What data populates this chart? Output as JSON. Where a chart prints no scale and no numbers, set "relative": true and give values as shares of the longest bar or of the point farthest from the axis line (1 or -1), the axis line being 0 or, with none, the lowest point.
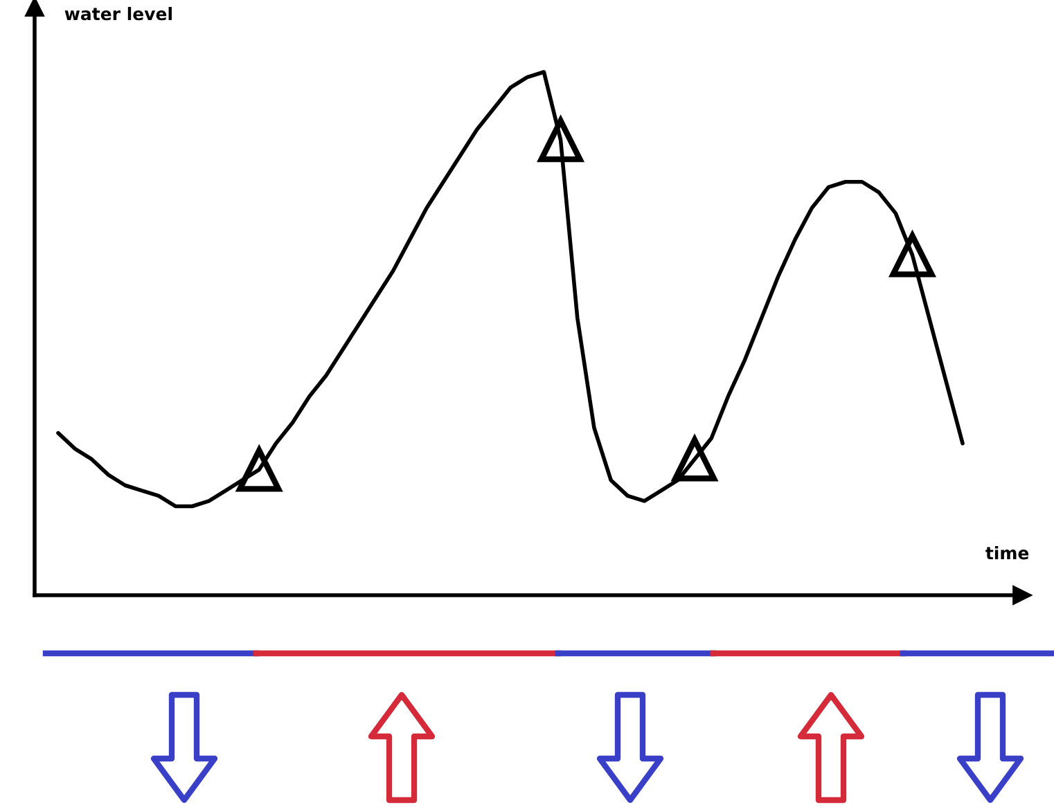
{
  "chart_data": {
    "type": "line",
    "relative": true,
    "xlabel": "time",
    "ylabel": "water level",
    "grid": false,
    "legend": false,
    "marker": "none",
    "line_style": "solid",
    "categories": [
      null,
      null,
      null,
      null,
      null,
      null,
      null,
      null,
      null,
      null,
      null,
      null,
      null,
      null,
      null,
      null,
      null,
      null,
      null,
      null,
      null,
      null,
      null,
      null,
      null,
      null,
      null,
      null,
      null,
      null,
      null,
      null,
      null,
      null,
      null,
      null,
      null,
      null,
      null,
      null,
      null,
      null,
      null,
      null,
      null,
      null,
      null,
      null,
      null,
      null,
      null,
      null,
      null,
      null,
      null
    ],
    "series": [
      {
        "color": "#000000",
        "values": [
          0.31,
          0.28,
          0.26,
          0.23,
          0.21,
          0.2,
          0.19,
          0.17,
          0.17,
          0.18,
          0.2,
          0.22,
          0.24,
          0.29,
          0.33,
          0.38,
          0.42,
          0.47,
          0.52,
          0.57,
          0.62,
          0.68,
          0.74,
          0.79,
          0.84,
          0.89,
          0.93,
          0.97,
          0.99,
          1,
          0.87,
          0.53,
          0.32,
          0.22,
          0.19,
          0.18,
          0.2,
          0.22,
          0.26,
          0.3,
          0.38,
          0.45,
          0.53,
          0.61,
          0.68,
          0.74,
          0.78,
          0.79,
          0.79,
          0.77,
          0.73,
          0.65,
          0.53,
          0.41,
          0.29
        ]
      }
    ]
  }
}
